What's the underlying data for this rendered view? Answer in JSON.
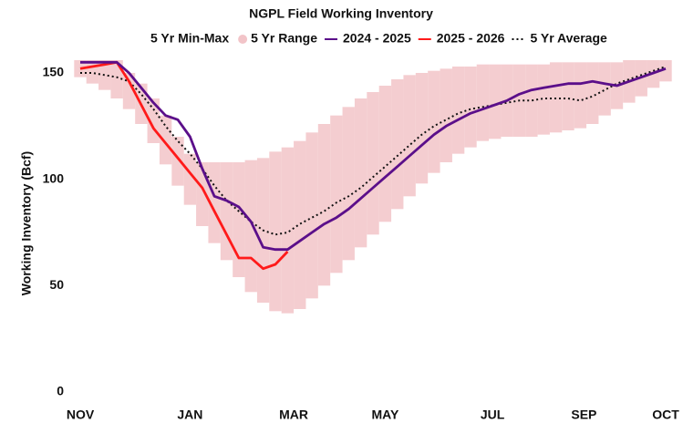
{
  "chart_data": {
    "type": "line",
    "title": "NGPL Field Working Inventory",
    "y_label": "Working Inventory (Bcf)",
    "x": [
      0,
      1,
      2,
      3,
      4,
      5,
      6,
      7,
      8,
      9,
      10,
      11,
      12,
      13,
      14,
      15,
      16,
      17,
      18,
      19,
      20,
      21,
      22,
      23,
      24,
      25,
      26,
      27,
      28,
      29,
      30,
      31,
      32,
      33,
      34,
      35,
      36,
      37,
      38,
      39,
      40,
      41,
      42,
      43,
      44,
      45,
      46,
      47,
      48
    ],
    "xlim": [
      0,
      48
    ],
    "xticks": [
      {
        "value": 0,
        "label": "NOV"
      },
      {
        "value": 9,
        "label": "JAN"
      },
      {
        "value": 17.5,
        "label": "MAR"
      },
      {
        "value": 25,
        "label": "MAY"
      },
      {
        "value": 33.8,
        "label": "JUL"
      },
      {
        "value": 41.3,
        "label": "SEP"
      },
      {
        "value": 48,
        "label": "OCT"
      }
    ],
    "ylim": [
      0,
      160
    ],
    "yticks": [
      0,
      50,
      100,
      150
    ],
    "grid": false,
    "band": {
      "group_label": "5 Yr Min-Max",
      "name": "5 Yr Range",
      "color": "#f2c4c8",
      "low": [
        148,
        145,
        142,
        138,
        133,
        126,
        117,
        107,
        97,
        88,
        78,
        70,
        62,
        54,
        47,
        42,
        38,
        37,
        39,
        44,
        50,
        56,
        62,
        68,
        74,
        80,
        86,
        92,
        98,
        103,
        108,
        112,
        115,
        118,
        119,
        120,
        120,
        120,
        121,
        122,
        123,
        124,
        126,
        130,
        133,
        136,
        139,
        143,
        146
      ],
      "high": [
        156,
        156,
        156,
        156,
        150,
        145,
        138,
        130,
        120,
        112,
        108,
        108,
        108,
        108,
        109,
        110,
        113,
        115,
        118,
        122,
        126,
        130,
        134,
        138,
        141,
        144,
        147,
        149,
        150,
        151,
        152,
        153,
        153,
        154,
        154,
        154,
        154,
        154,
        154,
        155,
        155,
        155,
        155,
        155,
        155,
        156,
        156,
        156,
        156
      ]
    },
    "series": [
      {
        "name": "2024 - 2025",
        "color": "#5b0f8a",
        "style": "solid",
        "values": [
          155,
          155,
          155,
          155,
          150,
          143,
          136,
          130,
          128,
          120,
          105,
          92,
          90,
          87,
          80,
          68,
          67,
          67,
          71,
          75,
          79,
          82,
          86,
          91,
          96,
          101,
          106,
          111,
          116,
          121,
          125,
          128,
          131,
          133,
          135,
          137,
          140,
          142,
          143,
          144,
          145,
          145,
          146,
          145,
          144,
          146,
          148,
          150,
          152
        ]
      },
      {
        "name": "2025 - 2026",
        "color": "#ff1a1a",
        "style": "solid",
        "values": [
          152,
          153,
          154,
          155,
          146,
          135,
          124,
          117,
          110,
          103,
          96,
          85,
          74,
          63,
          63,
          58,
          60,
          66,
          null,
          null,
          null,
          null,
          null,
          null,
          null,
          null,
          null,
          null,
          null,
          null,
          null,
          null,
          null,
          null,
          null,
          null,
          null,
          null,
          null,
          null,
          null,
          null,
          null,
          null,
          null,
          null,
          null,
          null,
          null
        ]
      },
      {
        "name": "5 Yr Average",
        "color": "#111111",
        "style": "dotted",
        "values": [
          150,
          150,
          149,
          148,
          146,
          140,
          133,
          125,
          118,
          112,
          105,
          97,
          90,
          85,
          80,
          76,
          74,
          75,
          79,
          82,
          85,
          89,
          92,
          96,
          101,
          106,
          111,
          116,
          121,
          125,
          128,
          131,
          133,
          134,
          135,
          136,
          137,
          137,
          138,
          138,
          138,
          137,
          139,
          142,
          145,
          147,
          149,
          151,
          153
        ]
      }
    ]
  }
}
